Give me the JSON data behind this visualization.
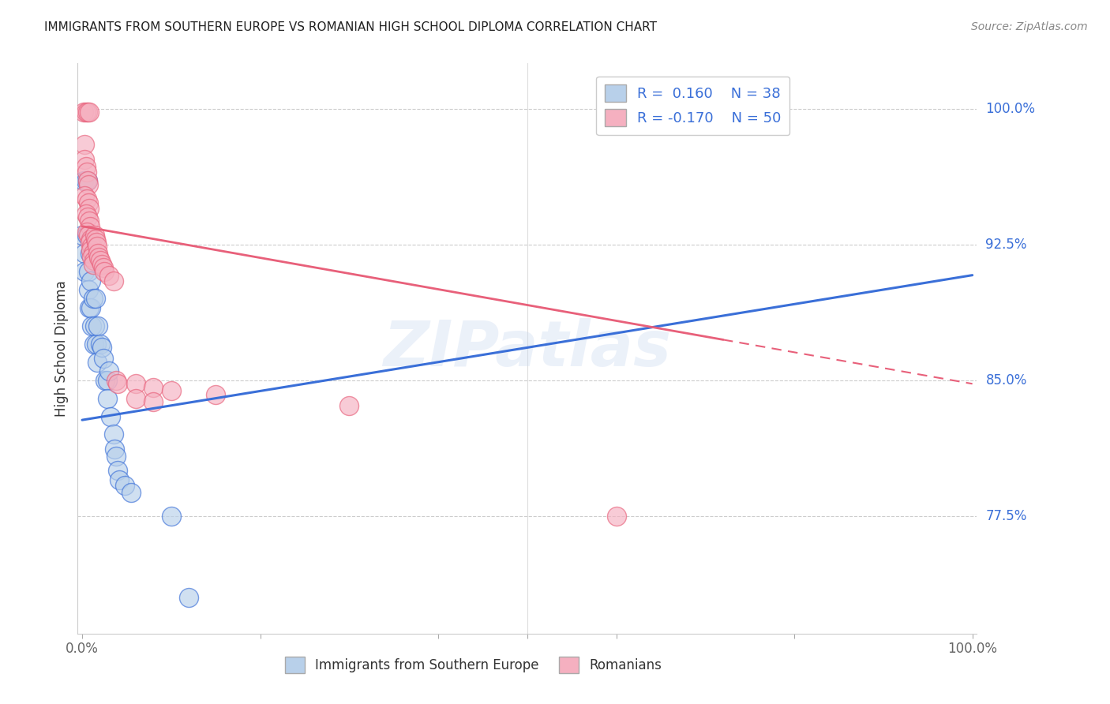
{
  "title": "IMMIGRANTS FROM SOUTHERN EUROPE VS ROMANIAN HIGH SCHOOL DIPLOMA CORRELATION CHART",
  "source": "Source: ZipAtlas.com",
  "ylabel": "High School Diploma",
  "legend_label1": "Immigrants from Southern Europe",
  "legend_label2": "Romanians",
  "R1": 0.16,
  "N1": 38,
  "R2": -0.17,
  "N2": 50,
  "color_blue": "#b8d0ea",
  "color_pink": "#f5b0c0",
  "color_blue_line": "#3a6fd8",
  "color_pink_line": "#e8607a",
  "right_yticks": [
    0.775,
    0.85,
    0.925,
    1.0
  ],
  "right_ytick_labels": [
    "77.5%",
    "85.0%",
    "92.5%",
    "100.0%"
  ],
  "watermark": "ZIPatlas",
  "blue_scatter": [
    [
      0.0,
      0.93
    ],
    [
      0.002,
      0.96
    ],
    [
      0.004,
      0.96
    ],
    [
      0.006,
      0.96
    ],
    [
      0.003,
      0.92
    ],
    [
      0.005,
      0.93
    ],
    [
      0.003,
      0.91
    ],
    [
      0.007,
      0.91
    ],
    [
      0.007,
      0.9
    ],
    [
      0.009,
      0.92
    ],
    [
      0.008,
      0.89
    ],
    [
      0.01,
      0.905
    ],
    [
      0.01,
      0.89
    ],
    [
      0.012,
      0.895
    ],
    [
      0.011,
      0.88
    ],
    [
      0.013,
      0.87
    ],
    [
      0.014,
      0.88
    ],
    [
      0.015,
      0.895
    ],
    [
      0.016,
      0.87
    ],
    [
      0.018,
      0.88
    ],
    [
      0.02,
      0.87
    ],
    [
      0.017,
      0.86
    ],
    [
      0.022,
      0.868
    ],
    [
      0.024,
      0.862
    ],
    [
      0.026,
      0.85
    ],
    [
      0.028,
      0.85
    ],
    [
      0.028,
      0.84
    ],
    [
      0.03,
      0.855
    ],
    [
      0.032,
      0.83
    ],
    [
      0.035,
      0.82
    ],
    [
      0.036,
      0.812
    ],
    [
      0.038,
      0.808
    ],
    [
      0.04,
      0.8
    ],
    [
      0.042,
      0.795
    ],
    [
      0.048,
      0.792
    ],
    [
      0.055,
      0.788
    ],
    [
      0.1,
      0.775
    ],
    [
      0.12,
      0.73
    ]
  ],
  "pink_scatter": [
    [
      0.002,
      0.998
    ],
    [
      0.004,
      0.998
    ],
    [
      0.006,
      0.998
    ],
    [
      0.008,
      0.998
    ],
    [
      0.003,
      0.98
    ],
    [
      0.003,
      0.972
    ],
    [
      0.004,
      0.968
    ],
    [
      0.005,
      0.965
    ],
    [
      0.006,
      0.96
    ],
    [
      0.007,
      0.958
    ],
    [
      0.003,
      0.952
    ],
    [
      0.005,
      0.95
    ],
    [
      0.007,
      0.948
    ],
    [
      0.008,
      0.945
    ],
    [
      0.004,
      0.942
    ],
    [
      0.006,
      0.94
    ],
    [
      0.008,
      0.938
    ],
    [
      0.009,
      0.935
    ],
    [
      0.005,
      0.932
    ],
    [
      0.007,
      0.93
    ],
    [
      0.01,
      0.928
    ],
    [
      0.009,
      0.926
    ],
    [
      0.011,
      0.924
    ],
    [
      0.01,
      0.922
    ],
    [
      0.012,
      0.92
    ],
    [
      0.011,
      0.918
    ],
    [
      0.013,
      0.916
    ],
    [
      0.012,
      0.914
    ],
    [
      0.014,
      0.93
    ],
    [
      0.015,
      0.928
    ],
    [
      0.016,
      0.926
    ],
    [
      0.017,
      0.924
    ],
    [
      0.018,
      0.92
    ],
    [
      0.019,
      0.918
    ],
    [
      0.02,
      0.916
    ],
    [
      0.022,
      0.914
    ],
    [
      0.024,
      0.912
    ],
    [
      0.025,
      0.91
    ],
    [
      0.03,
      0.908
    ],
    [
      0.035,
      0.905
    ],
    [
      0.038,
      0.85
    ],
    [
      0.04,
      0.848
    ],
    [
      0.06,
      0.848
    ],
    [
      0.08,
      0.846
    ],
    [
      0.1,
      0.844
    ],
    [
      0.15,
      0.842
    ],
    [
      0.06,
      0.84
    ],
    [
      0.08,
      0.838
    ],
    [
      0.3,
      0.836
    ],
    [
      0.6,
      0.775
    ]
  ],
  "xmin": -0.005,
  "xmax": 1.005,
  "ymin": 0.71,
  "ymax": 1.025,
  "blue_line_x": [
    0.0,
    1.0
  ],
  "blue_line_y": [
    0.828,
    0.908
  ],
  "pink_line_x": [
    0.0,
    1.0
  ],
  "pink_line_y": [
    0.935,
    0.848
  ]
}
